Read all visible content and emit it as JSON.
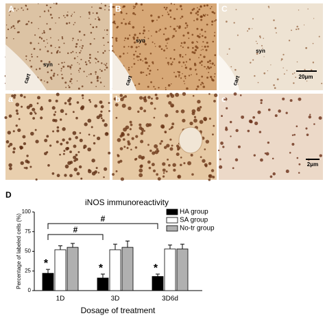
{
  "panels": [
    {
      "label": "A",
      "texts": [
        "syn",
        "cart"
      ]
    },
    {
      "label": "B",
      "texts": [
        "syn",
        "cart"
      ]
    },
    {
      "label": "C",
      "texts": [
        "syn",
        "cart",
        "20μm"
      ]
    },
    {
      "label": "a",
      "texts": []
    },
    {
      "label": "b",
      "texts": []
    },
    {
      "label": "c",
      "texts": [
        "2μm"
      ]
    }
  ],
  "chart_label": "D",
  "chart_data": {
    "type": "bar",
    "title": "iNOS immunoreactivity",
    "y_label": "Percentage of labeled cells (%)",
    "x_label": "Dosage of treatment",
    "categories": [
      "1D",
      "3D",
      "3D6d"
    ],
    "series": [
      {
        "name": "HA group",
        "color": "#000000",
        "values": [
          22,
          16,
          18
        ],
        "errors": [
          5,
          5,
          3
        ]
      },
      {
        "name": "SA group",
        "color": "#ffffff",
        "values": [
          52,
          52,
          53
        ],
        "errors": [
          5,
          7,
          5
        ]
      },
      {
        "name": "No-tr group",
        "color": "#b0b0b0",
        "values": [
          55,
          55,
          53
        ],
        "errors": [
          5,
          8,
          6
        ]
      }
    ],
    "ylim": [
      0,
      100
    ],
    "yticks": [
      0,
      25,
      50,
      75,
      100
    ],
    "stars": [
      "*",
      "*",
      "*"
    ],
    "significance": [
      "#",
      "#"
    ]
  }
}
